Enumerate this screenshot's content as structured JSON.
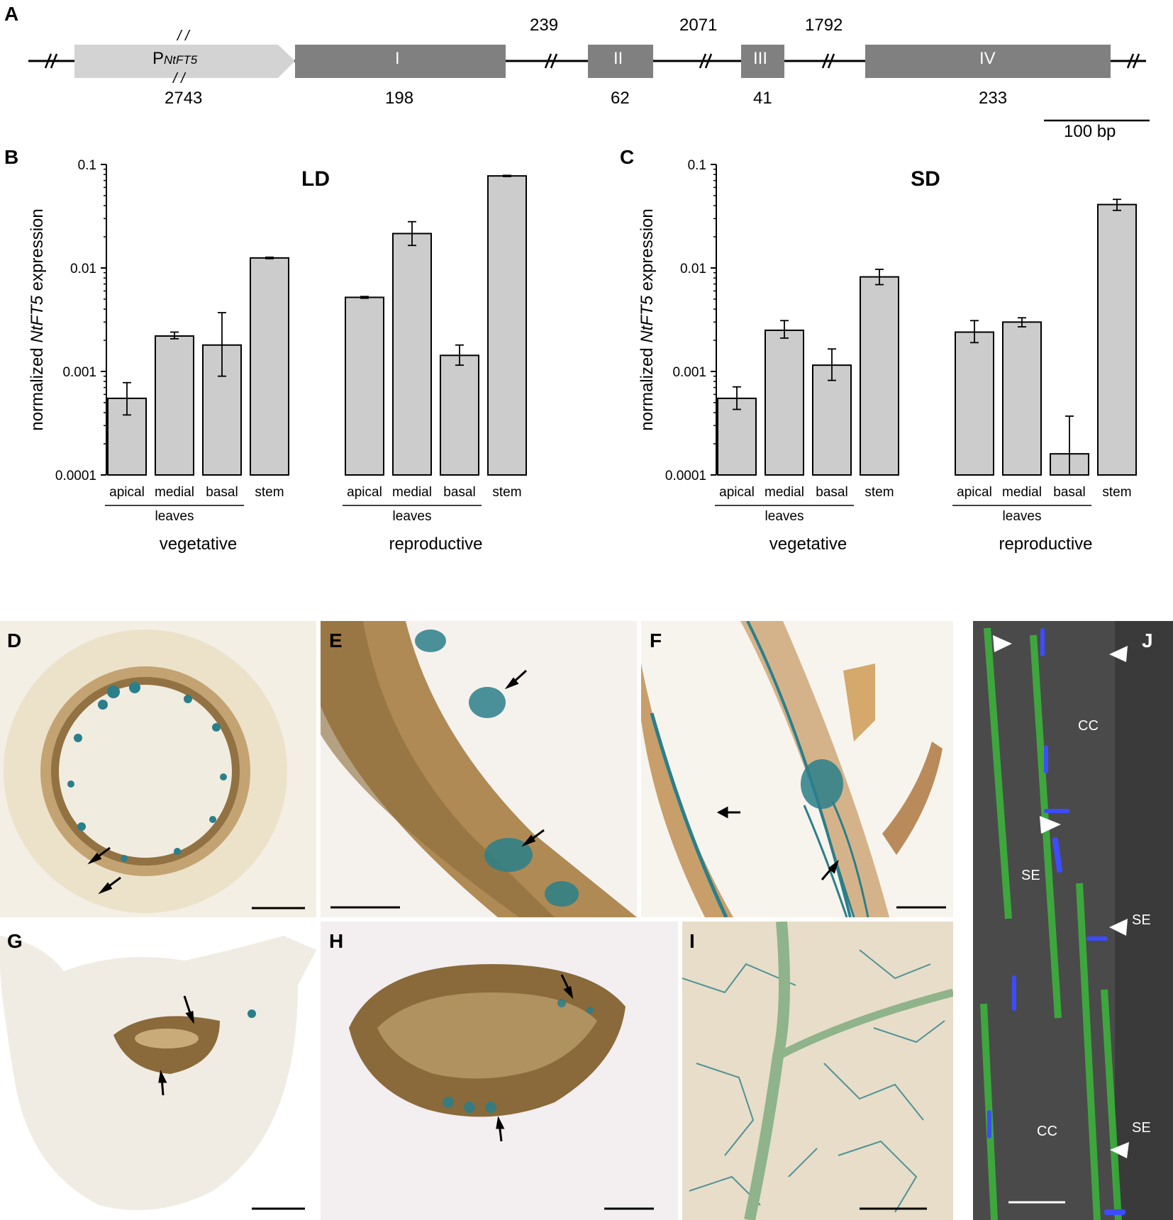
{
  "panel_labels": {
    "A": "A",
    "B": "B",
    "C": "C",
    "D": "D",
    "E": "E",
    "F": "F",
    "G": "G",
    "H": "H",
    "I": "I",
    "J": "J"
  },
  "gene_model": {
    "promoter": {
      "prefix": "P",
      "subscript": "NtFT5",
      "length": "2743",
      "break_mark": "/ /"
    },
    "exons": [
      {
        "label": "I",
        "length": "198"
      },
      {
        "label": "II",
        "length": "62"
      },
      {
        "label": "III",
        "length": "41"
      },
      {
        "label": "IV",
        "length": "233"
      }
    ],
    "introns": [
      "239",
      "2071",
      "1792"
    ],
    "scalebar": "100 bp",
    "colors": {
      "promoter": "#d3d3d3",
      "exon": "#808080",
      "line": "#000000"
    }
  },
  "ylabel": {
    "pre": "normalized ",
    "gene": "NtFT5",
    "post": " expression"
  },
  "chart_data": [
    {
      "type": "bar",
      "title": "LD",
      "log_scale": true,
      "ylim": [
        0.0001,
        0.1
      ],
      "yticks": [
        "0.0001",
        "0.001",
        "0.01",
        "0.1"
      ],
      "ytick_values": [
        0.0001,
        0.001,
        0.01,
        0.1
      ],
      "groups": [
        {
          "name": "vegetative",
          "subgroup": "leaves",
          "categories": [
            "apical",
            "medial",
            "basal",
            "stem"
          ],
          "values": [
            0.00055,
            0.0022,
            0.0018,
            0.0125
          ],
          "err_low": [
            0.00038,
            0.00207,
            0.0009,
            0.0123
          ],
          "err_high": [
            0.00078,
            0.0024,
            0.0037,
            0.0127
          ]
        },
        {
          "name": "reproductive",
          "subgroup": "leaves",
          "categories": [
            "apical",
            "medial",
            "basal",
            "stem"
          ],
          "values": [
            0.0052,
            0.0215,
            0.00143,
            0.0775
          ],
          "err_low": [
            0.0051,
            0.0165,
            0.00115,
            0.0765
          ],
          "err_high": [
            0.0053,
            0.028,
            0.0018,
            0.0785
          ]
        }
      ],
      "bar_color": "#cccccc",
      "grid": false
    },
    {
      "type": "bar",
      "title": "SD",
      "log_scale": true,
      "ylim": [
        0.0001,
        0.1
      ],
      "yticks": [
        "0.0001",
        "0.001",
        "0.01",
        "0.1"
      ],
      "ytick_values": [
        0.0001,
        0.001,
        0.01,
        0.1
      ],
      "groups": [
        {
          "name": "vegetative",
          "subgroup": "leaves",
          "categories": [
            "apical",
            "medial",
            "basal",
            "stem"
          ],
          "values": [
            0.00055,
            0.0025,
            0.00115,
            0.0082
          ],
          "err_low": [
            0.00043,
            0.0021,
            0.00082,
            0.0069
          ],
          "err_high": [
            0.00071,
            0.0031,
            0.00165,
            0.0097
          ]
        },
        {
          "name": "reproductive",
          "subgroup": "leaves",
          "categories": [
            "apical",
            "medial",
            "basal",
            "stem"
          ],
          "values": [
            0.0024,
            0.003,
            0.00016,
            0.041
          ],
          "err_low": [
            0.0019,
            0.0027,
            0.0001,
            0.036
          ],
          "err_high": [
            0.0031,
            0.0033,
            0.00037,
            0.046
          ]
        }
      ],
      "bar_color": "#cccccc",
      "grid": false
    }
  ],
  "micrograph_labels": {
    "J": {
      "cc1": "CC",
      "se1": "SE",
      "se2": "SE",
      "cc2": "CC",
      "cc3": "CC",
      "se3": "SE"
    }
  },
  "micrograph_colors": {
    "stain": "#2a7f8a",
    "tissue": "#8a6a3a",
    "background": "#f3eee4",
    "fluor": "#39c739",
    "dapi": "#3c4cff",
    "dark": "#4a4a4a"
  }
}
